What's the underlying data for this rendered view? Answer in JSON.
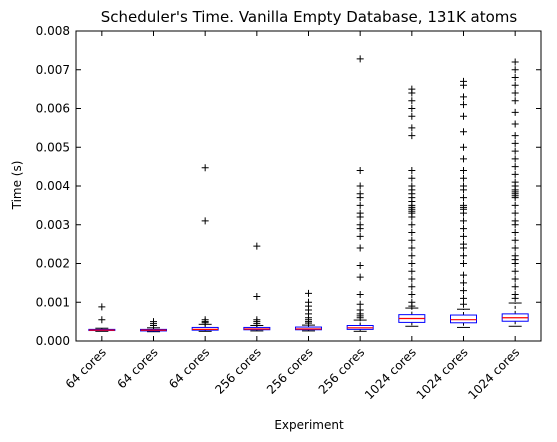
{
  "chart_data": {
    "type": "box",
    "title": "Scheduler's Time. Vanilla Empty Database, 131K atoms",
    "xlabel": "Experiment",
    "ylabel": "Time (s)",
    "ylim": [
      0,
      0.008
    ],
    "yticks": [
      "0.000",
      "0.001",
      "0.002",
      "0.003",
      "0.004",
      "0.005",
      "0.006",
      "0.007",
      "0.008"
    ],
    "grid": false,
    "categories": [
      "64 cores",
      "64 cores",
      "64 cores",
      "256 cores",
      "256 cores",
      "256 cores",
      "1024 cores",
      "1024 cores",
      "1024 cores"
    ],
    "colors": {
      "box": "#0000ff",
      "median": "#ff0000",
      "whisker": "#000000",
      "cap": "#000000",
      "flier": "#000000"
    },
    "boxes": [
      {
        "whisker_low": 0.00025,
        "q1": 0.00027,
        "median": 0.00028,
        "q3": 0.0003,
        "whisker_high": 0.00033,
        "fliers": [
          0.00088,
          0.00055
        ]
      },
      {
        "whisker_low": 0.00024,
        "q1": 0.00026,
        "median": 0.00028,
        "q3": 0.0003,
        "whisker_high": 0.00034,
        "fliers": [
          0.0005,
          0.00045,
          0.0004
        ]
      },
      {
        "whisker_low": 0.00025,
        "q1": 0.00028,
        "median": 0.0003,
        "q3": 0.00035,
        "whisker_high": 0.00043,
        "fliers": [
          0.00447,
          0.0031,
          0.00055,
          0.0005,
          0.00047
        ]
      },
      {
        "whisker_low": 0.00026,
        "q1": 0.00029,
        "median": 0.00031,
        "q3": 0.00035,
        "whisker_high": 0.0004,
        "fliers": [
          0.00245,
          0.00115,
          0.00055,
          0.0005,
          0.00045
        ]
      },
      {
        "whisker_low": 0.00026,
        "q1": 0.00029,
        "median": 0.00031,
        "q3": 0.00036,
        "whisker_high": 0.00041,
        "fliers": [
          0.00123,
          0.001,
          0.0009,
          0.0008,
          0.0007,
          0.0006,
          0.00055,
          0.0005,
          0.00046
        ]
      },
      {
        "whisker_low": 0.00025,
        "q1": 0.0003,
        "median": 0.00034,
        "q3": 0.0004,
        "whisker_high": 0.00054,
        "fliers": [
          0.00728,
          0.0044,
          0.004,
          0.0038,
          0.0037,
          0.0035,
          0.0033,
          0.0032,
          0.003,
          0.0029,
          0.0027,
          0.0024,
          0.00195,
          0.00165,
          0.0012,
          0.00095,
          0.0008,
          0.0007,
          0.00065,
          0.0006
        ]
      },
      {
        "whisker_low": 0.00038,
        "q1": 0.00048,
        "median": 0.00058,
        "q3": 0.00068,
        "whisker_high": 0.00085,
        "fliers": [
          0.0065,
          0.0064,
          0.0062,
          0.006,
          0.0058,
          0.0055,
          0.0053,
          0.0044,
          0.0042,
          0.004,
          0.0039,
          0.0038,
          0.0037,
          0.0036,
          0.0035,
          0.00345,
          0.0034,
          0.00335,
          0.0033,
          0.0032,
          0.003,
          0.0028,
          0.0026,
          0.0024,
          0.0022,
          0.002,
          0.0018,
          0.0016,
          0.0014,
          0.0012,
          0.001,
          0.0009
        ]
      },
      {
        "whisker_low": 0.00035,
        "q1": 0.00047,
        "median": 0.00055,
        "q3": 0.00067,
        "whisker_high": 0.00082,
        "fliers": [
          0.0067,
          0.0066,
          0.0063,
          0.0061,
          0.0058,
          0.0054,
          0.005,
          0.0047,
          0.0044,
          0.0042,
          0.004,
          0.0039,
          0.0037,
          0.0035,
          0.00345,
          0.0034,
          0.0033,
          0.0031,
          0.0029,
          0.0027,
          0.0025,
          0.0024,
          0.0022,
          0.002,
          0.0017,
          0.0015,
          0.0013,
          0.0011,
          0.00095
        ]
      },
      {
        "whisker_low": 0.00038,
        "q1": 0.00051,
        "median": 0.0006,
        "q3": 0.0007,
        "whisker_high": 0.00098,
        "fliers": [
          0.0072,
          0.007,
          0.0068,
          0.0066,
          0.0064,
          0.0062,
          0.0059,
          0.0056,
          0.0053,
          0.0051,
          0.0049,
          0.0047,
          0.0045,
          0.0043,
          0.0041,
          0.004,
          0.0039,
          0.00385,
          0.0038,
          0.00375,
          0.0037,
          0.0035,
          0.0033,
          0.0031,
          0.003,
          0.0028,
          0.0026,
          0.0024,
          0.0022,
          0.0021,
          0.002,
          0.0018,
          0.0016,
          0.0014,
          0.0012,
          0.0011
        ]
      }
    ]
  }
}
